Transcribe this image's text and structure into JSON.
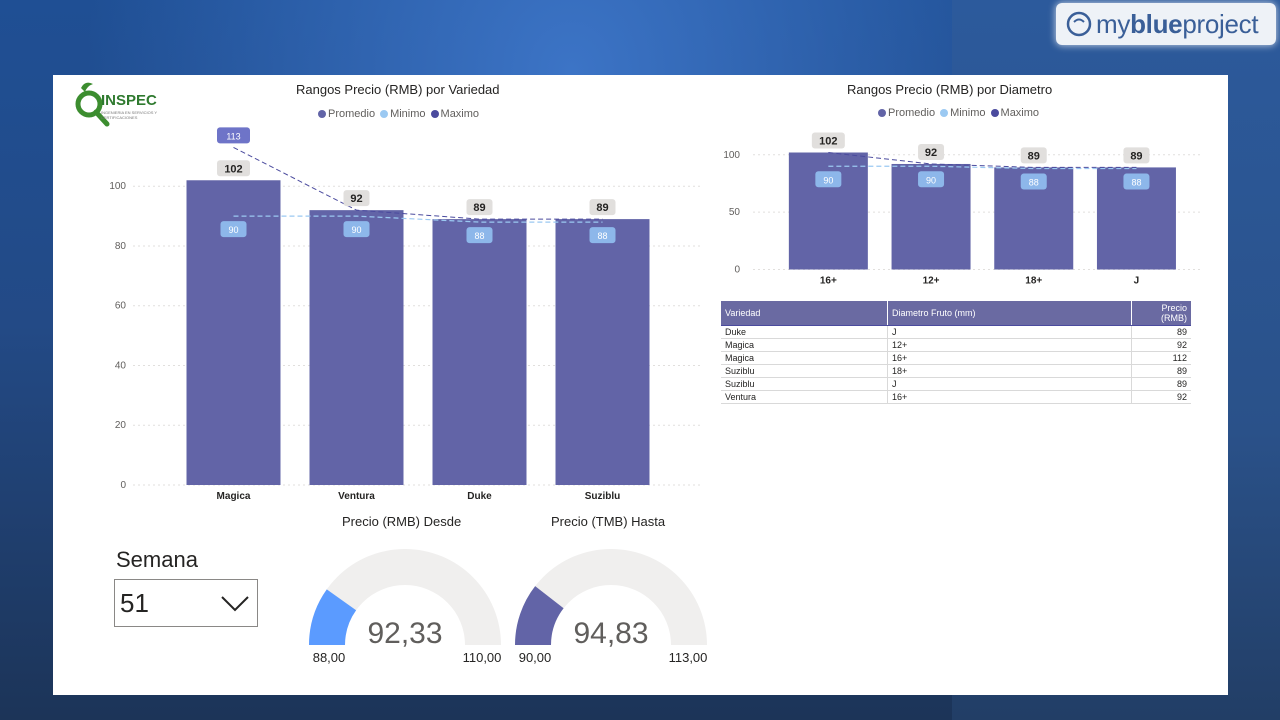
{
  "brand": {
    "prefix": "my",
    "bold": "blue",
    "suffix": "project"
  },
  "logo": {
    "name": "INSPEC",
    "sub": "INGENIERIA EN SERVICIOS Y CERTIFICACIONES"
  },
  "legend": {
    "promedio": "Promedio",
    "minimo": "Minimo",
    "maximo": "Maximo"
  },
  "colors": {
    "promedio": "#6264a7",
    "minimo": "#9bc9f2",
    "maximo": "#4b4b9e",
    "gauge_desde": "#5b9bff",
    "gauge_hasta": "#6264a7",
    "track": "#f0efee"
  },
  "chart_data": [
    {
      "type": "bar",
      "title": "Rangos Precio (RMB) por Variedad",
      "categories": [
        "Magica",
        "Ventura",
        "Duke",
        "Suziblu"
      ],
      "series": [
        {
          "name": "Promedio",
          "values": [
            102,
            92,
            89,
            89
          ]
        },
        {
          "name": "Minimo",
          "values": [
            90,
            90,
            88,
            88
          ]
        },
        {
          "name": "Maximo",
          "values": [
            113,
            92,
            89,
            89
          ]
        }
      ],
      "yticks": [
        0,
        20,
        40,
        60,
        80,
        100
      ],
      "ylim": [
        0,
        113
      ],
      "legend_position": "top-center"
    },
    {
      "type": "bar",
      "title": "Rangos Precio (RMB) por Diametro",
      "categories": [
        "16+",
        "12+",
        "18+",
        "J"
      ],
      "series": [
        {
          "name": "Promedio",
          "values": [
            102,
            92,
            89,
            89
          ]
        },
        {
          "name": "Minimo",
          "values": [
            90,
            90,
            88,
            88
          ]
        },
        {
          "name": "Maximo",
          "values": [
            102,
            92,
            89,
            89
          ]
        }
      ],
      "yticks": [
        0,
        50,
        100
      ],
      "ylim": [
        0,
        102
      ],
      "legend_position": "top-center"
    },
    {
      "type": "table",
      "columns": [
        "Variedad",
        "Diametro Fruto (mm)",
        "Precio (RMB)"
      ],
      "rows": [
        [
          "Duke",
          "J",
          "89"
        ],
        [
          "Magica",
          "12+",
          "92"
        ],
        [
          "Magica",
          "16+",
          "112"
        ],
        [
          "Suziblu",
          "18+",
          "89"
        ],
        [
          "Suziblu",
          "J",
          "89"
        ],
        [
          "Ventura",
          "16+",
          "92"
        ]
      ]
    },
    {
      "type": "gauge",
      "title": "Precio (RMB) Desde",
      "value": 92.33,
      "value_label": "92,33",
      "min": 88,
      "min_label": "88,00",
      "max": 110,
      "max_label": "110,00"
    },
    {
      "type": "gauge",
      "title": "Precio (TMB) Hasta",
      "value": 94.83,
      "value_label": "94,83",
      "min": 90,
      "min_label": "90,00",
      "max": 113,
      "max_label": "113,00"
    }
  ],
  "slicer": {
    "label": "Semana",
    "value": "51"
  }
}
